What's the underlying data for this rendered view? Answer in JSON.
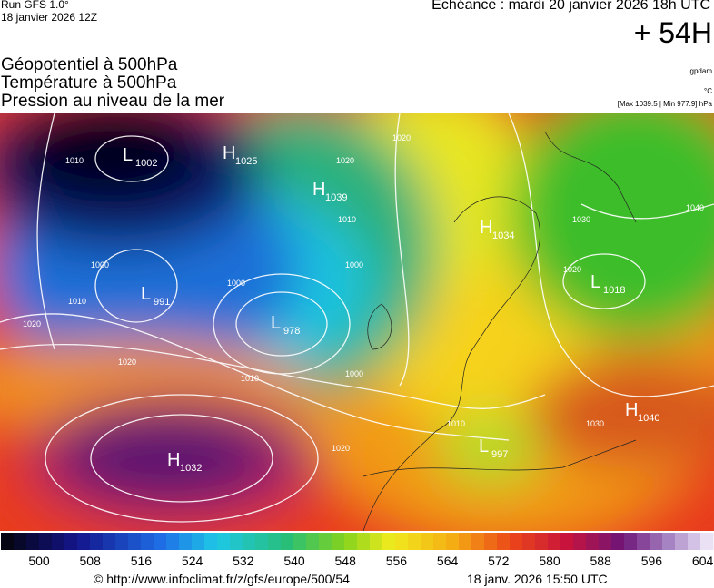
{
  "header": {
    "run": "Run GFS 1.0°",
    "run_date": "18 janvier 2026 12Z",
    "valid": "Echéance : mardi 20 janvier 2026 18h UTC",
    "lead": "+ 54H"
  },
  "titles": [
    "Géopotentiel à 500hPa",
    "Température à 500hPa",
    "Pression au niveau de la mer"
  ],
  "units": {
    "height": "gpdam",
    "temperature": "°C",
    "extremes": "[Max 1039.5 | Min 977.9] hPa"
  },
  "centers": [
    {
      "type": "L",
      "value": "1002"
    },
    {
      "type": "H",
      "value": "1025"
    },
    {
      "type": "H",
      "value": "1039"
    },
    {
      "type": "L",
      "value": "991"
    },
    {
      "type": "L",
      "value": "978"
    },
    {
      "type": "H",
      "value": "1032"
    },
    {
      "type": "H",
      "value": "1034"
    },
    {
      "type": "L",
      "value": "1018"
    },
    {
      "type": "H",
      "value": "1040"
    },
    {
      "type": "L",
      "value": "997"
    }
  ],
  "isobar_labels": [
    "1010",
    "1000",
    "1010",
    "1020",
    "1020",
    "1010",
    "1000",
    "1000",
    "1010",
    "1020",
    "1020",
    "1030",
    "1040",
    "1020",
    "1030",
    "1010",
    "1020",
    "1000"
  ],
  "scale_labels": [
    "500",
    "508",
    "516",
    "524",
    "532",
    "540",
    "548",
    "556",
    "564",
    "572",
    "580",
    "588",
    "596",
    "604"
  ],
  "footer": {
    "source": "© http://www.infoclimat.fr/z/gfs/europe/500/54",
    "generated": "18 janv. 2026 15:50 UTC"
  }
}
